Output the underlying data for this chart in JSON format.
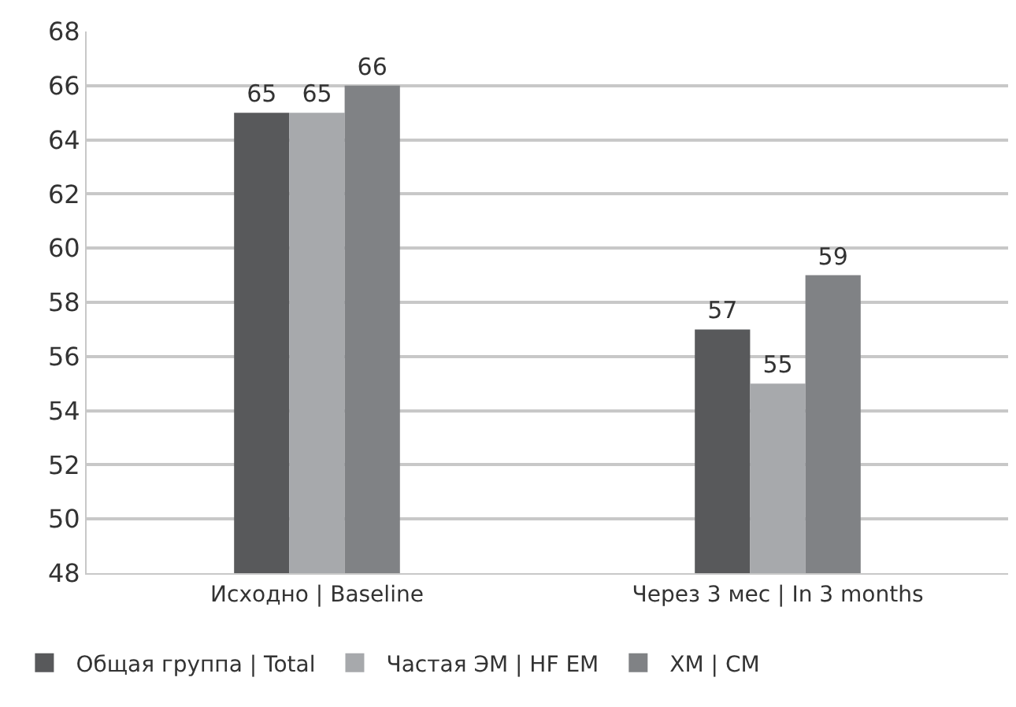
{
  "chart_data": {
    "type": "bar",
    "categories": [
      "Исходно | Baseline",
      "Через 3 мес | In 3 months"
    ],
    "series": [
      {
        "name": "Общая группа | Total",
        "color": "#58595b",
        "values": [
          65,
          57
        ]
      },
      {
        "name": "Частая ЭМ | HF EM",
        "color": "#a7a9ac",
        "values": [
          65,
          55
        ]
      },
      {
        "name": "ХМ | CM",
        "color": "#808285",
        "values": [
          66,
          59
        ]
      }
    ],
    "ylim": [
      48,
      68
    ],
    "yticks": [
      48,
      50,
      52,
      54,
      56,
      58,
      60,
      62,
      64,
      66,
      68
    ],
    "grid": "y",
    "legend": "bottom",
    "data_labels": true
  }
}
